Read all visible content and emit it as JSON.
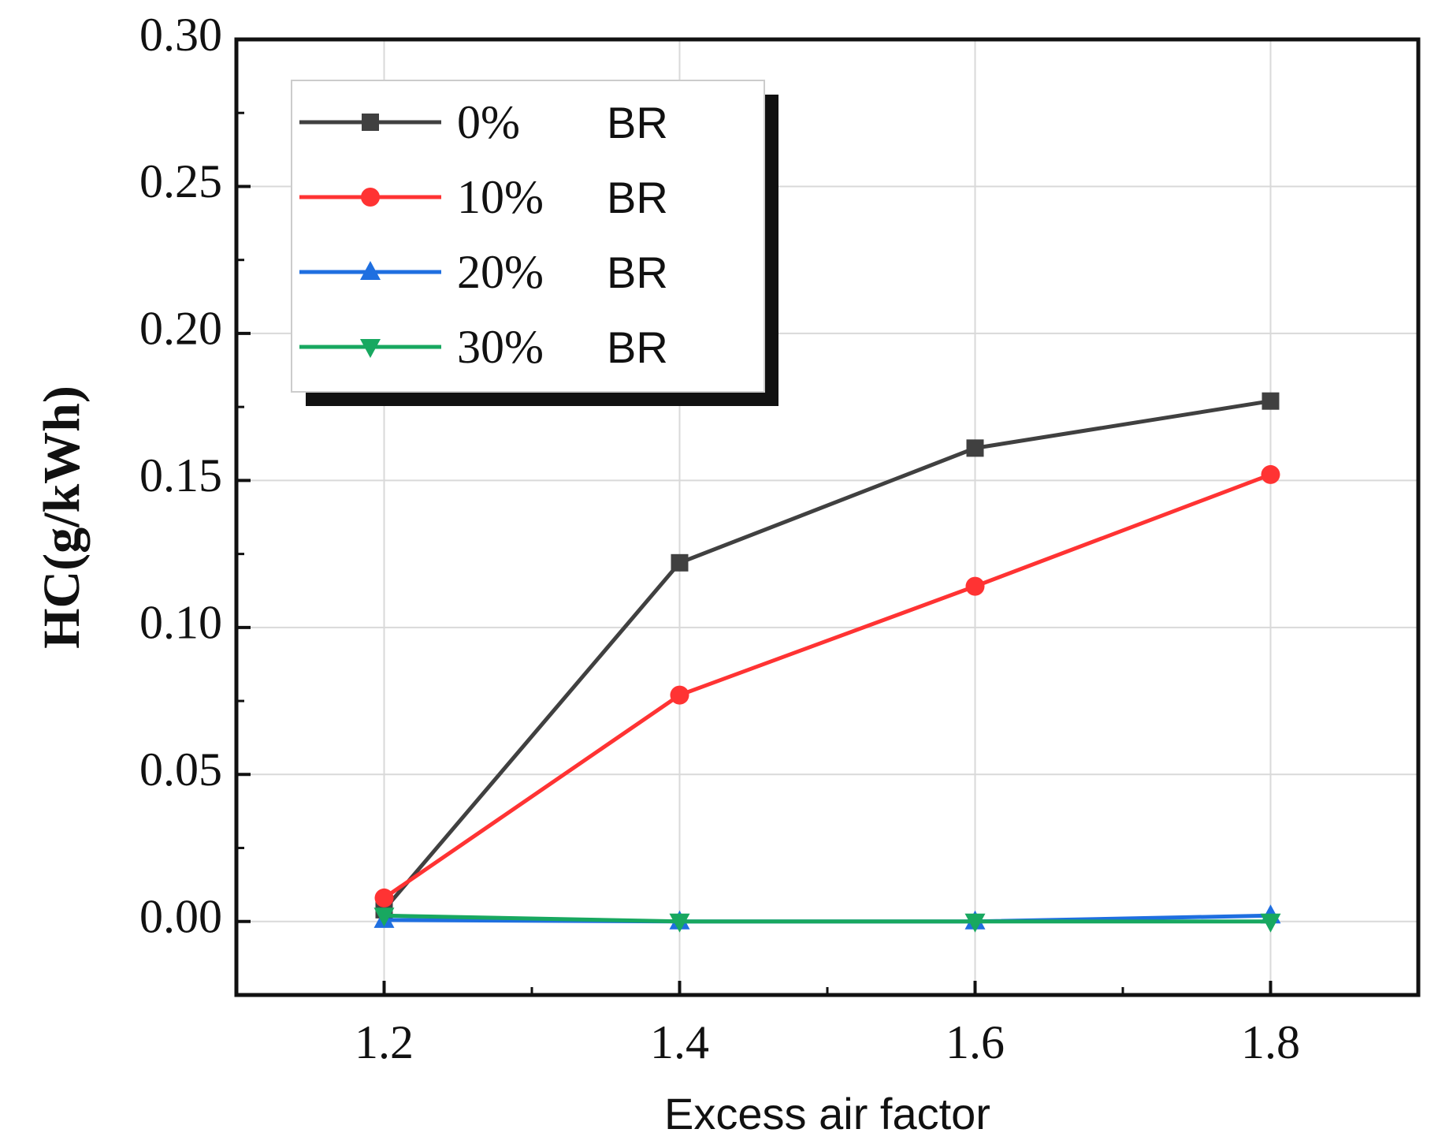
{
  "chart_data": {
    "type": "line",
    "title": "",
    "xlabel": "Excess air factor",
    "ylabel": "HC(g/kWh)",
    "x": [
      1.2,
      1.4,
      1.6,
      1.8
    ],
    "x_tick_labels": [
      "1.2",
      "1.4",
      "1.6",
      "1.8"
    ],
    "y_tick_labels": [
      "0.00",
      "0.05",
      "0.10",
      "0.15",
      "0.20",
      "0.25",
      "0.30"
    ],
    "xlim": [
      1.1,
      1.9
    ],
    "ylim": [
      -0.025,
      0.3
    ],
    "grid": true,
    "legend_position": "top-left",
    "series": [
      {
        "name": "0%",
        "unit_label": "BR",
        "color": "#404040",
        "marker": "square",
        "values": [
          0.004,
          0.122,
          0.161,
          0.177
        ]
      },
      {
        "name": "10%",
        "unit_label": "BR",
        "color": "#ff3333",
        "marker": "circle",
        "values": [
          0.008,
          0.077,
          0.114,
          0.152
        ]
      },
      {
        "name": "20%",
        "unit_label": "BR",
        "color": "#1f6fe0",
        "marker": "triangle-up",
        "values": [
          0.0005,
          0.0,
          0.0,
          0.002
        ]
      },
      {
        "name": "30%",
        "unit_label": "BR",
        "color": "#18a860",
        "marker": "triangle-down",
        "values": [
          0.002,
          0.0,
          0.0,
          0.0
        ]
      }
    ]
  }
}
